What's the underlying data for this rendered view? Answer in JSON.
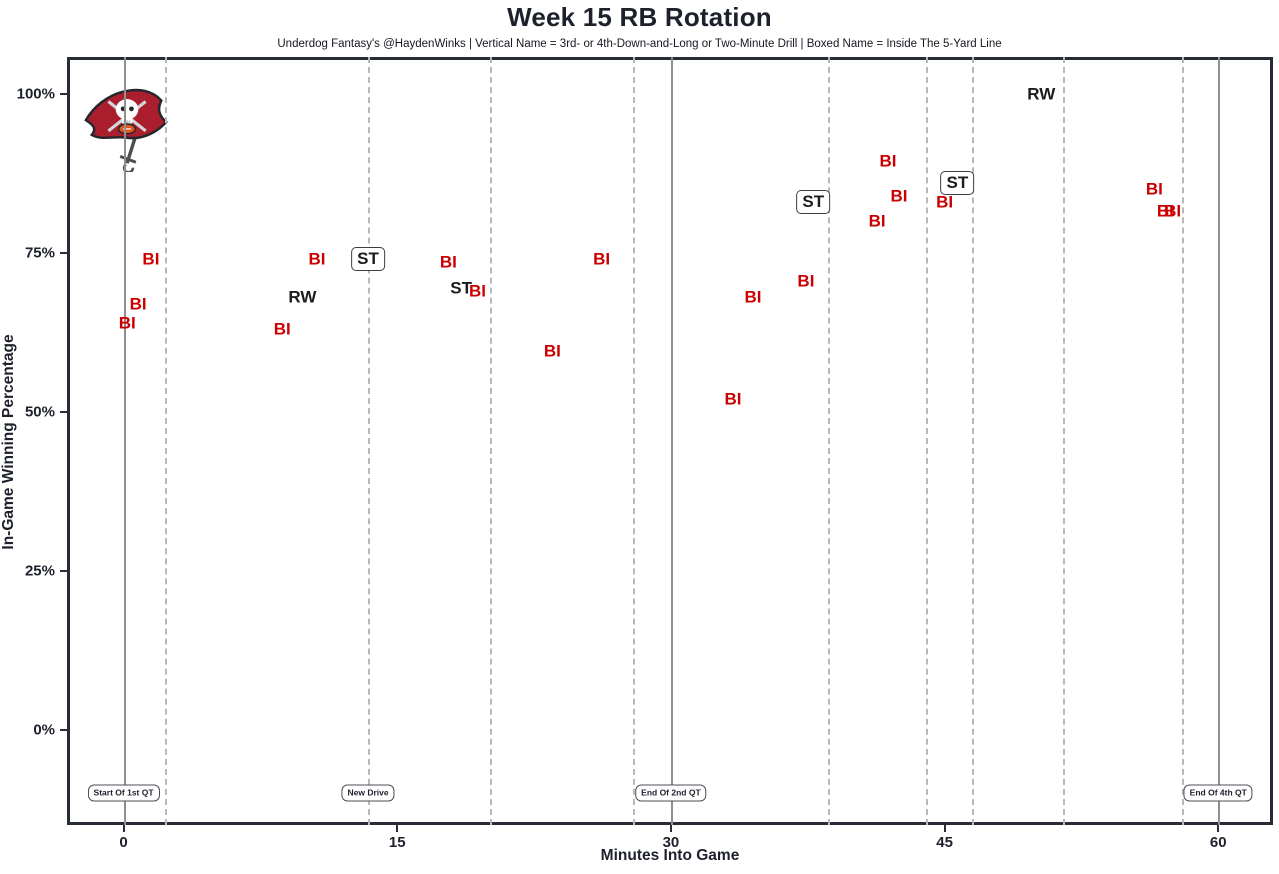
{
  "page": {
    "title": "Week 15 RB Rotation",
    "subtitle": "Underdog Fantasy's @HaydenWinks | Vertical Name = 3rd- or 4th-Down-and-Long or Two-Minute Drill | Boxed Name = Inside The 5-Yard Line"
  },
  "logo": {
    "team": "tampa-bay-buccaneers"
  },
  "chart_data": {
    "type": "scatter",
    "title": "Week 15 RB Rotation",
    "subtitle": "Underdog Fantasy's @HaydenWinks | Vertical Name = 3rd- or 4th-Down-and-Long or Two-Minute Drill | Boxed Name = Inside The 5-Yard Line",
    "xlabel": "Minutes Into Game",
    "ylabel": "In-Game Winning Percentage",
    "xlim": [
      -3.1,
      63.0
    ],
    "ylim": [
      -15.0,
      105.8
    ],
    "grid": false,
    "legend": "none",
    "x_ticks": [
      {
        "value": 0,
        "label": "0"
      },
      {
        "value": 15,
        "label": "15"
      },
      {
        "value": 30,
        "label": "30"
      },
      {
        "value": 45,
        "label": "45"
      },
      {
        "value": 60,
        "label": "60"
      }
    ],
    "y_ticks": [
      {
        "value": 0,
        "label": "0%"
      },
      {
        "value": 25,
        "label": "25%"
      },
      {
        "value": 50,
        "label": "50%"
      },
      {
        "value": 75,
        "label": "75%"
      },
      {
        "value": 100,
        "label": "100%"
      }
    ],
    "label_colors": {
      "BI": "#CC0000",
      "RW": "#1c1c1c",
      "ST": "#1c1c1c"
    },
    "series": [
      {
        "name": "RW",
        "points": [
          {
            "minute": 9.8,
            "win_pct": 68,
            "boxed": false
          },
          {
            "minute": 50.3,
            "win_pct": 100,
            "boxed": false
          }
        ]
      },
      {
        "name": "ST",
        "points": [
          {
            "minute": 13.4,
            "win_pct": 74,
            "boxed": true
          },
          {
            "minute": 18.5,
            "win_pct": 69.5,
            "boxed": false
          },
          {
            "minute": 37.8,
            "win_pct": 83,
            "boxed": true
          },
          {
            "minute": 45.7,
            "win_pct": 86,
            "boxed": true
          }
        ]
      },
      {
        "name": "BI",
        "points": [
          {
            "minute": 0.2,
            "win_pct": 64,
            "boxed": false
          },
          {
            "minute": 0.8,
            "win_pct": 67,
            "boxed": false
          },
          {
            "minute": 1.5,
            "win_pct": 74,
            "boxed": false
          },
          {
            "minute": 8.7,
            "win_pct": 63,
            "boxed": false
          },
          {
            "minute": 10.6,
            "win_pct": 74,
            "boxed": false
          },
          {
            "minute": 17.8,
            "win_pct": 73.5,
            "boxed": false
          },
          {
            "minute": 19.4,
            "win_pct": 69,
            "boxed": false
          },
          {
            "minute": 23.5,
            "win_pct": 59.5,
            "boxed": false
          },
          {
            "minute": 26.2,
            "win_pct": 74,
            "boxed": false
          },
          {
            "minute": 33.4,
            "win_pct": 52,
            "boxed": false
          },
          {
            "minute": 34.5,
            "win_pct": 68,
            "boxed": false
          },
          {
            "minute": 37.4,
            "win_pct": 70.5,
            "boxed": false
          },
          {
            "minute": 41.3,
            "win_pct": 80,
            "boxed": false
          },
          {
            "minute": 41.9,
            "win_pct": 89.5,
            "boxed": false
          },
          {
            "minute": 42.5,
            "win_pct": 84,
            "boxed": false
          },
          {
            "minute": 45.0,
            "win_pct": 83,
            "boxed": false
          },
          {
            "minute": 56.5,
            "win_pct": 85,
            "boxed": false
          },
          {
            "minute": 57.1,
            "win_pct": 81.5,
            "boxed": false
          },
          {
            "minute": 57.5,
            "win_pct": 81.5,
            "boxed": false
          }
        ]
      }
    ],
    "event_lines": [
      {
        "minute": 0,
        "style": "solid",
        "label": "Start Of 1st QT"
      },
      {
        "minute": 2.25,
        "style": "dashed",
        "label": ""
      },
      {
        "minute": 13.4,
        "style": "dashed",
        "label": "New Drive"
      },
      {
        "minute": 20.1,
        "style": "dashed",
        "label": ""
      },
      {
        "minute": 27.9,
        "style": "dashed",
        "label": ""
      },
      {
        "minute": 30,
        "style": "solid",
        "label": "End Of 2nd QT"
      },
      {
        "minute": 38.6,
        "style": "dashed",
        "label": ""
      },
      {
        "minute": 44.0,
        "style": "dashed",
        "label": ""
      },
      {
        "minute": 46.5,
        "style": "dashed",
        "label": ""
      },
      {
        "minute": 51.5,
        "style": "dashed",
        "label": ""
      },
      {
        "minute": 58.0,
        "style": "dashed",
        "label": ""
      },
      {
        "minute": 60,
        "style": "solid",
        "label": "End Of 4th QT"
      }
    ]
  }
}
